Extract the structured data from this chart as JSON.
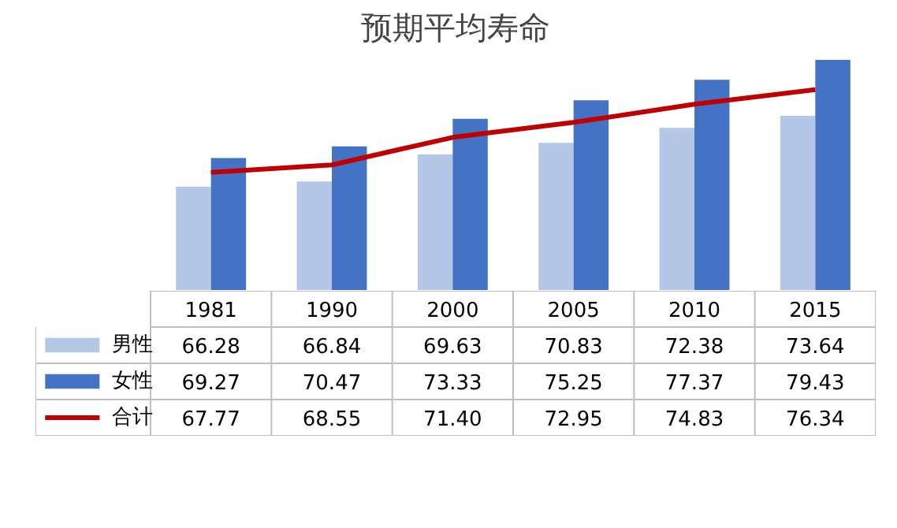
{
  "chart_data": {
    "type": "bar",
    "title": "预期平均寿命",
    "categories": [
      "1981",
      "1990",
      "2000",
      "2005",
      "2010",
      "2015"
    ],
    "ylim": [
      55.5,
      80
    ],
    "grid": false,
    "legend": "bottom left",
    "series": [
      {
        "name": "男性",
        "color": "#b4c7e7",
        "values": [
          66.28,
          66.84,
          69.63,
          70.83,
          72.38,
          73.64
        ],
        "value_labels": [
          "66.28",
          "66.84",
          "69.63",
          "70.83",
          "72.38",
          "73.64"
        ]
      },
      {
        "name": "女性",
        "color": "#4472c4",
        "values": [
          69.27,
          70.47,
          73.33,
          75.25,
          77.37,
          79.43
        ],
        "value_labels": [
          "69.27",
          "70.47",
          "73.33",
          "75.25",
          "77.37",
          "79.43"
        ]
      },
      {
        "name": "合计",
        "type": "line",
        "color": "#c00000",
        "values": [
          67.77,
          68.55,
          71.4,
          72.95,
          74.83,
          76.34
        ],
        "value_labels": [
          "67.77",
          "68.55",
          "71.40",
          "72.95",
          "74.83",
          "76.34"
        ]
      }
    ]
  }
}
